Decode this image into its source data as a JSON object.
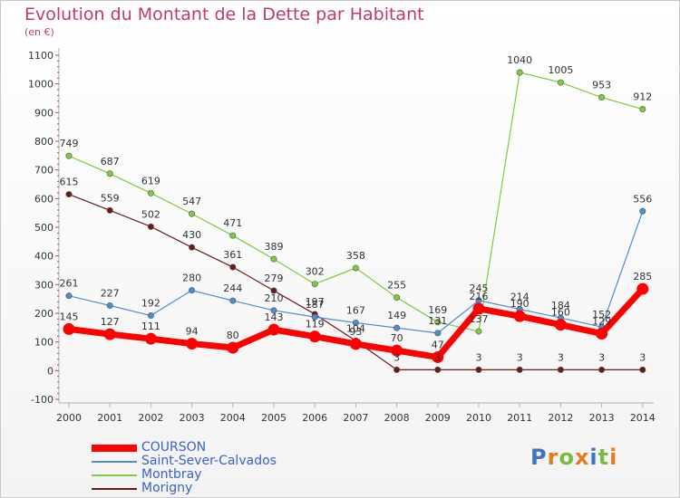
{
  "header": {
    "title": "Evolution du Montant de la Dette par Habitant",
    "unit": "(en €)"
  },
  "brand": {
    "name": "Proxiti",
    "letters": [
      {
        "ch": "P",
        "color": "#3d74c4"
      },
      {
        "ch": "r",
        "color": "#e87a1f"
      },
      {
        "ch": "o",
        "color": "#7cb940"
      },
      {
        "ch": "x",
        "color": "#e87a1f"
      },
      {
        "ch": "i",
        "color": "#3d74c4"
      },
      {
        "ch": "t",
        "color": "#7cb940"
      },
      {
        "ch": "i",
        "color": "#e87a1f"
      }
    ]
  },
  "chart_data": {
    "type": "line",
    "title": "Evolution du Montant de la Dette par Habitant",
    "ylabel": "(en €)",
    "xlabel": "",
    "ylim": [
      -100,
      1100
    ],
    "yticks": [
      -100,
      0,
      100,
      200,
      300,
      400,
      500,
      600,
      700,
      800,
      900,
      1000,
      1100
    ],
    "grid": false,
    "legend_position": "bottom-left",
    "categories": [
      "2000",
      "2001",
      "2002",
      "2003",
      "2004",
      "2005",
      "2006",
      "2007",
      "2008",
      "2009",
      "2010",
      "2011",
      "2012",
      "2013",
      "2014"
    ],
    "series": [
      {
        "name": "COURSON",
        "color": "#ff0000",
        "values": [
          145,
          127,
          111,
          94,
          80,
          143,
          119,
          93,
          70,
          47,
          216,
          190,
          160,
          129,
          285
        ]
      },
      {
        "name": "Saint-Sever-Calvados",
        "color": "#4a8ed0",
        "values": [
          261,
          227,
          192,
          280,
          244,
          210,
          187,
          167,
          149,
          131,
          245,
          214,
          184,
          152,
          556
        ]
      },
      {
        "name": "Montbray",
        "color": "#7ecb3f",
        "values": [
          749,
          687,
          619,
          547,
          471,
          389,
          302,
          358,
          255,
          169,
          137,
          1040,
          1005,
          953,
          912
        ]
      },
      {
        "name": "Morigny",
        "color": "#6b1a1a",
        "values": [
          615,
          559,
          502,
          430,
          361,
          279,
          197,
          104,
          3,
          3,
          3,
          3,
          3,
          3,
          3
        ]
      }
    ]
  }
}
